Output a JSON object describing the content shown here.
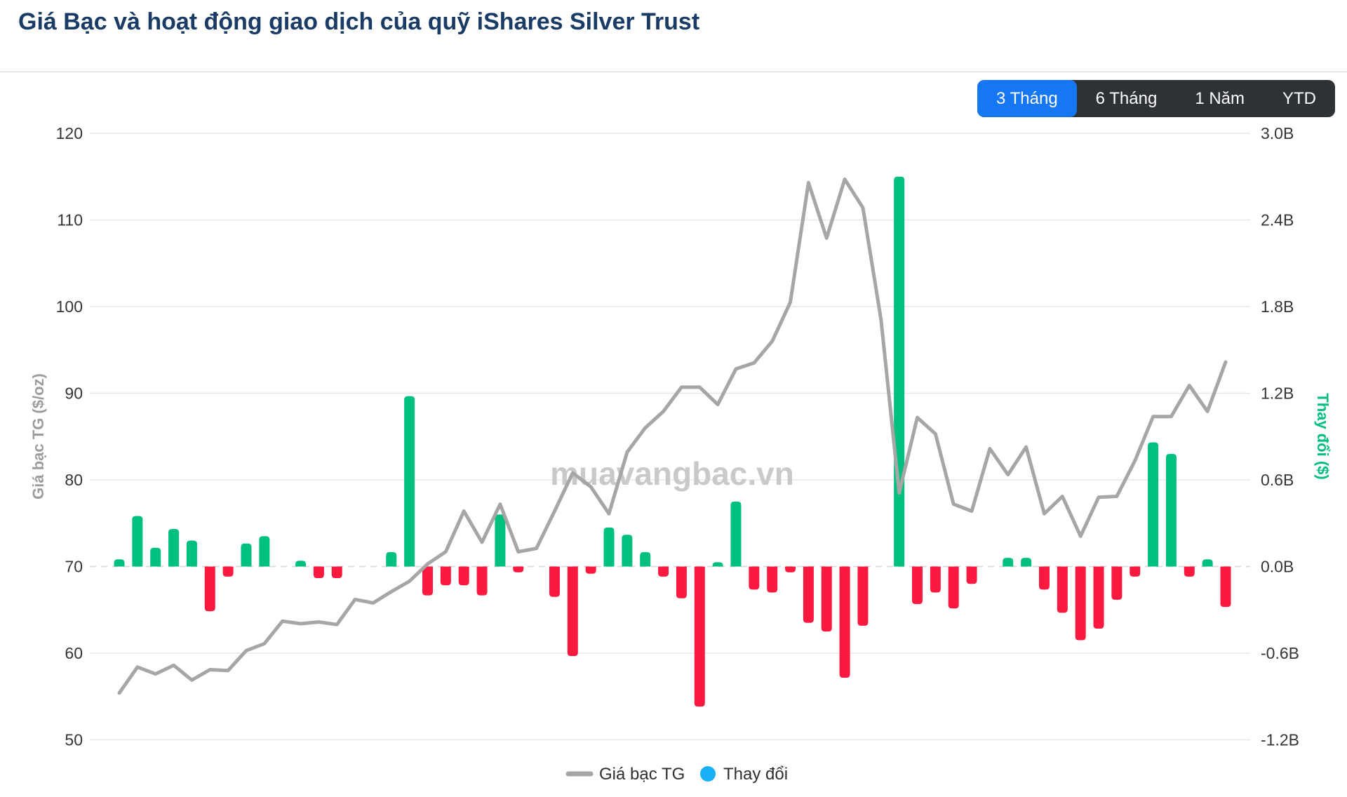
{
  "header": {
    "title": "Giá Bạc và hoạt động giao dịch của quỹ iShares Silver Trust",
    "range_buttons": [
      {
        "label": "3 Tháng",
        "active": true
      },
      {
        "label": "6 Tháng",
        "active": false
      },
      {
        "label": "1 Năm",
        "active": false
      },
      {
        "label": "YTD",
        "active": false
      }
    ]
  },
  "watermark": "muavangbac.vn",
  "legend": [
    {
      "label": "Giá bạc TG",
      "marker": "line",
      "color": "#a6a6a6"
    },
    {
      "label": "Thay đổi",
      "marker": "circle",
      "color": "#1ab0f5"
    }
  ],
  "colors": {
    "title": "#1a3b66",
    "active_button": "#1677f2",
    "button_bar": "#2e3237",
    "line": "#a6a6a6",
    "bar_positive": "#00c07d",
    "bar_negative": "#fa1a40",
    "grid": "#e8e8e8",
    "zero_line": "#dcdcdc",
    "tick_text": "#333538",
    "left_axis_title": "#9c9c9c",
    "right_axis_title": "#00bf7b",
    "watermark": "#c9c9c9",
    "legend_text": "#2f2f31"
  },
  "chart_data": {
    "type": "line+bar",
    "title": "Giá Bạc và hoạt động giao dịch của quỹ iShares Silver Trust",
    "x_description": "62 daily trading sessions over 3 months (no date labels shown)",
    "grid": true,
    "legend_position": "bottom-center",
    "left_axis": {
      "title": "Giá bạc TG ($/oz)",
      "ticks": [
        120,
        110,
        100,
        90,
        80,
        70,
        60,
        50
      ],
      "range": [
        48.5,
        123.2
      ]
    },
    "right_axis": {
      "title": "Thay đổi ($)",
      "ticks": [
        "3.0B",
        "2.4B",
        "1.8B",
        "1.2B",
        "0.6B",
        "0.0B",
        "-0.6B",
        "-1.2B"
      ],
      "tick_values": [
        3.0,
        2.4,
        1.8,
        1.2,
        0.6,
        0.0,
        -0.6,
        -1.2
      ],
      "range": [
        -1.45,
        3.15
      ]
    },
    "series": [
      {
        "name": "Giá bạc TG",
        "type": "line",
        "axis": "left",
        "unit": "$/oz",
        "color": "#a6a6a6",
        "values": [
          55.4,
          58.4,
          57.6,
          58.6,
          56.9,
          58.1,
          58.0,
          60.3,
          61.1,
          63.7,
          63.4,
          63.6,
          63.3,
          66.2,
          65.8,
          67.1,
          68.3,
          70.3,
          71.7,
          76.4,
          72.8,
          77.2,
          71.7,
          72.1,
          76.4,
          80.8,
          79.2,
          76.1,
          83.2,
          86.0,
          87.9,
          90.7,
          90.7,
          88.7,
          92.8,
          93.5,
          96.0,
          100.5,
          114.3,
          107.9,
          114.7,
          111.4,
          98.5,
          78.5,
          87.2,
          85.3,
          77.2,
          76.4,
          83.6,
          80.6,
          83.8,
          76.1,
          78.1,
          73.5,
          78.0,
          78.1,
          82.2,
          87.3,
          87.3,
          90.9,
          87.9,
          93.6
        ]
      },
      {
        "name": "Thay đổi",
        "type": "bar",
        "axis": "right",
        "unit": "billion $",
        "color_positive": "#00c07d",
        "color_negative": "#fa1a40",
        "values": [
          0.05,
          0.35,
          0.13,
          0.26,
          0.18,
          -0.31,
          -0.07,
          0.16,
          0.21,
          0,
          0.04,
          -0.08,
          -0.08,
          0,
          0,
          0.1,
          1.18,
          -0.2,
          -0.13,
          -0.13,
          -0.2,
          0.36,
          -0.04,
          0,
          -0.21,
          -0.62,
          -0.05,
          0.27,
          0.22,
          0.1,
          -0.07,
          -0.22,
          -0.97,
          0.03,
          0.45,
          -0.16,
          -0.18,
          -0.04,
          -0.39,
          -0.45,
          -0.77,
          -0.41,
          0,
          2.7,
          -0.26,
          -0.18,
          -0.29,
          -0.12,
          0,
          0.06,
          0.06,
          -0.16,
          -0.32,
          -0.51,
          -0.43,
          -0.23,
          -0.07,
          0.86,
          0.78,
          -0.07,
          0.05,
          -0.28
        ]
      }
    ]
  }
}
